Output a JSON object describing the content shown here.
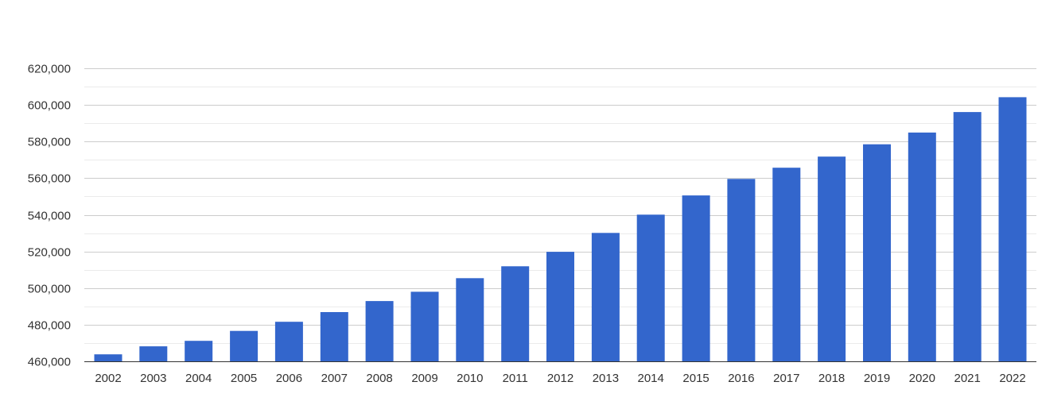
{
  "chart_data": {
    "type": "bar",
    "categories": [
      "2002",
      "2003",
      "2004",
      "2005",
      "2006",
      "2007",
      "2008",
      "2009",
      "2010",
      "2011",
      "2012",
      "2013",
      "2014",
      "2015",
      "2016",
      "2017",
      "2018",
      "2019",
      "2020",
      "2021",
      "2022"
    ],
    "values": [
      463800,
      468200,
      471200,
      476600,
      481600,
      486900,
      492900,
      498000,
      505400,
      511900,
      519800,
      530100,
      540100,
      550600,
      559600,
      565700,
      571800,
      578500,
      584900,
      596100,
      604200
    ],
    "title": "",
    "xlabel": "",
    "ylabel": "",
    "ylim": [
      460000,
      620000
    ],
    "y_ticks": [
      "460,000",
      "480,000",
      "500,000",
      "520,000",
      "540,000",
      "560,000",
      "580,000",
      "600,000",
      "620,000"
    ],
    "y_tick_values": [
      460000,
      480000,
      500000,
      520000,
      540000,
      560000,
      580000,
      600000,
      620000
    ],
    "grid": true,
    "minor_grid": true,
    "legend": "none",
    "bar_color": "#3366cc",
    "grid_color": "#cccccc",
    "minor_grid_color": "#ebebeb"
  }
}
